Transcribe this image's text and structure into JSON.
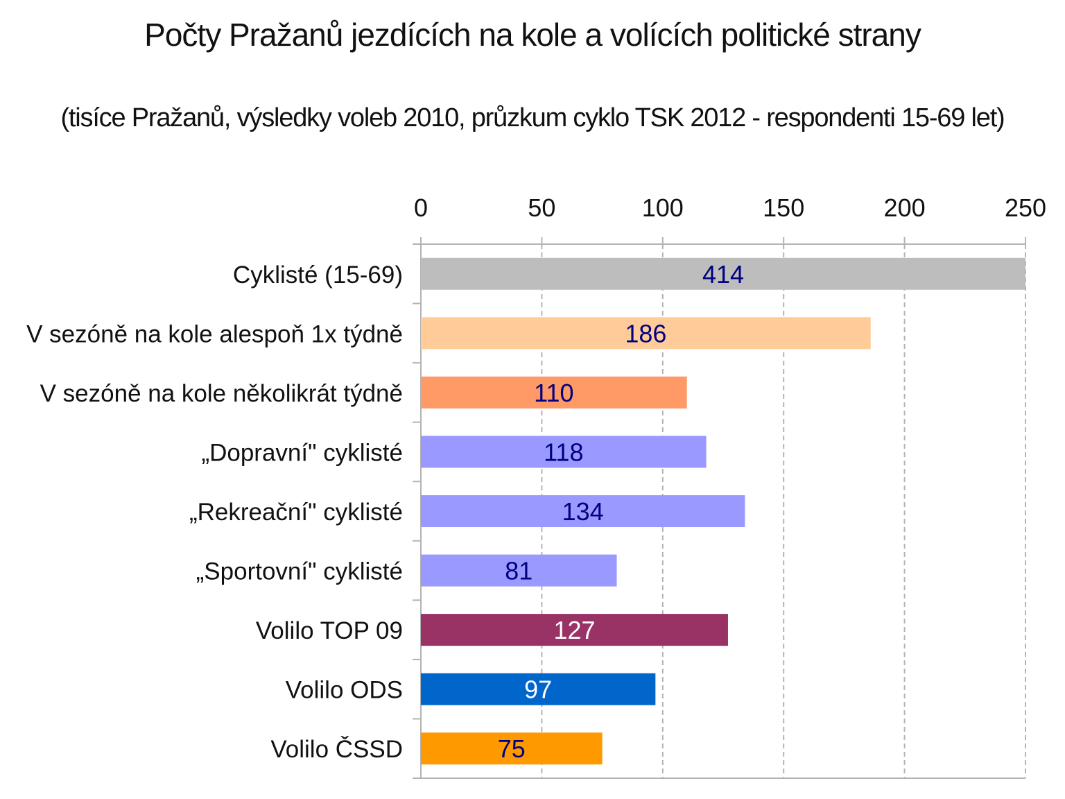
{
  "chart_data": {
    "type": "bar",
    "orientation": "horizontal",
    "title": "Počty Pražanů jezdících na kole a volících politické strany",
    "subtitle": "(tisíce Pražanů, výsledky voleb 2010, průzkum cyklo TSK 2012 - respondenti 15-69 let)",
    "xlim": [
      0,
      250
    ],
    "xticks": [
      0,
      50,
      100,
      150,
      200,
      250
    ],
    "tick_labels": [
      "0",
      "50",
      "100",
      "150",
      "200",
      "250"
    ],
    "axis_position": "top",
    "grid": "vertical dashed",
    "categories": [
      "Cyklisté (15-69)",
      "V sezóně na kole alespoň 1x týdně",
      "V sezóně na kole několikrát týdně",
      "„Dopravní\" cyklisté",
      "„Rekreační\" cyklisté",
      "„Sportovní\" cyklisté",
      "Volilo TOP 09",
      "Volilo ODS",
      "Volilo ČSSD"
    ],
    "values": [
      414,
      186,
      110,
      118,
      134,
      81,
      127,
      97,
      75
    ],
    "data_labels": [
      "414",
      "186",
      "110",
      "118",
      "134",
      "81",
      "127",
      "97",
      "75"
    ],
    "colors": [
      "#bdbdbd",
      "#ffcc99",
      "#ff9966",
      "#9999ff",
      "#9999ff",
      "#9999ff",
      "#993366",
      "#0066cc",
      "#ff9900"
    ],
    "label_colors": [
      "#000080",
      "#000080",
      "#000080",
      "#000080",
      "#000080",
      "#000080",
      "#ffffff",
      "#ffffff",
      "#000080"
    ],
    "grid_color": "#b3b3b3",
    "axis_color": "#b3b3b3"
  }
}
